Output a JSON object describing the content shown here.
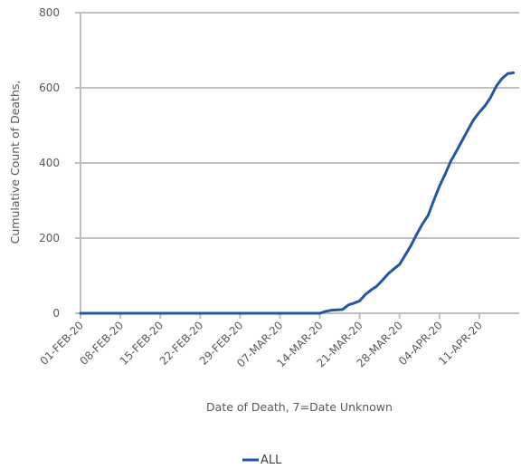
{
  "chart_data": {
    "type": "line",
    "xlabel": "Date of Death, 7=Date Unknown",
    "ylabel": "Cumulative Count of Deaths,",
    "ylim": [
      0,
      800
    ],
    "yticks": [
      0,
      200,
      400,
      600,
      800
    ],
    "xlim": [
      "2020-02-01",
      "2020-04-18"
    ],
    "xtick_labels": [
      {
        "date": "2020-02-01",
        "label": "01-FEB-20"
      },
      {
        "date": "2020-02-08",
        "label": "08-FEB-20"
      },
      {
        "date": "2020-02-15",
        "label": "15-FEB-20"
      },
      {
        "date": "2020-02-22",
        "label": "22-FEB-20"
      },
      {
        "date": "2020-02-29",
        "label": "29-FEB-20"
      },
      {
        "date": "2020-03-07",
        "label": "07-MAR-20"
      },
      {
        "date": "2020-03-14",
        "label": "14-MAR-20"
      },
      {
        "date": "2020-03-21",
        "label": "21-MAR-20"
      },
      {
        "date": "2020-03-28",
        "label": "28-MAR-20"
      },
      {
        "date": "2020-04-04",
        "label": "04-APR-20"
      },
      {
        "date": "2020-04-11",
        "label": "11-APR-20"
      }
    ],
    "grid": "horizontal",
    "legend_position": "bottom",
    "series": [
      {
        "name": "ALL",
        "color": "#2157a3",
        "points": [
          {
            "x": "2020-02-01",
            "y": 0
          },
          {
            "x": "2020-03-14",
            "y": 0
          },
          {
            "x": "2020-03-15",
            "y": 5
          },
          {
            "x": "2020-03-16",
            "y": 8
          },
          {
            "x": "2020-03-17",
            "y": 9
          },
          {
            "x": "2020-03-18",
            "y": 10
          },
          {
            "x": "2020-03-19",
            "y": 22
          },
          {
            "x": "2020-03-20",
            "y": 27
          },
          {
            "x": "2020-03-21",
            "y": 33
          },
          {
            "x": "2020-03-22",
            "y": 50
          },
          {
            "x": "2020-03-23",
            "y": 62
          },
          {
            "x": "2020-03-24",
            "y": 72
          },
          {
            "x": "2020-03-25",
            "y": 88
          },
          {
            "x": "2020-03-26",
            "y": 105
          },
          {
            "x": "2020-03-27",
            "y": 118
          },
          {
            "x": "2020-03-28",
            "y": 130
          },
          {
            "x": "2020-03-29",
            "y": 155
          },
          {
            "x": "2020-03-30",
            "y": 180
          },
          {
            "x": "2020-03-31",
            "y": 210
          },
          {
            "x": "2020-04-01",
            "y": 237
          },
          {
            "x": "2020-04-02",
            "y": 260
          },
          {
            "x": "2020-04-03",
            "y": 300
          },
          {
            "x": "2020-04-04",
            "y": 338
          },
          {
            "x": "2020-04-05",
            "y": 370
          },
          {
            "x": "2020-04-06",
            "y": 405
          },
          {
            "x": "2020-04-07",
            "y": 432
          },
          {
            "x": "2020-04-08",
            "y": 460
          },
          {
            "x": "2020-04-09",
            "y": 488
          },
          {
            "x": "2020-04-10",
            "y": 515
          },
          {
            "x": "2020-04-11",
            "y": 535
          },
          {
            "x": "2020-04-12",
            "y": 552
          },
          {
            "x": "2020-04-13",
            "y": 575
          },
          {
            "x": "2020-04-14",
            "y": 605
          },
          {
            "x": "2020-04-15",
            "y": 625
          },
          {
            "x": "2020-04-16",
            "y": 638
          },
          {
            "x": "2020-04-17",
            "y": 640
          }
        ]
      }
    ]
  }
}
